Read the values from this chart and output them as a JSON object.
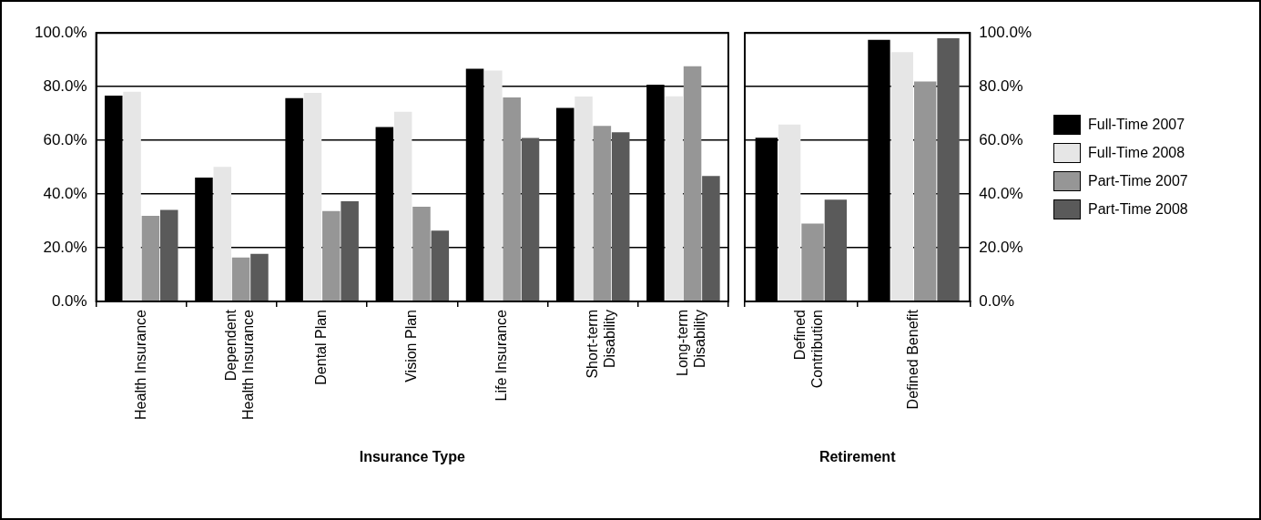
{
  "chart_data": [
    {
      "type": "bar",
      "xlabel": "Insurance Type",
      "categories": [
        "Health Insurance",
        "Dependent Health Insurance",
        "Dental Plan",
        "Vision Plan",
        "Life Insurance",
        "Short-term Disability",
        "Long-term Disability"
      ],
      "series": [
        {
          "color": "#000000",
          "values": [
            76.7,
            46.1,
            75.7,
            65.0,
            86.7,
            72.1,
            80.7
          ]
        },
        {
          "color": "#e6e6e6",
          "values": [
            78.1,
            50.1,
            77.7,
            70.6,
            86.0,
            76.3,
            76.4
          ]
        },
        {
          "color": "#969696",
          "values": [
            31.9,
            16.4,
            33.7,
            35.3,
            76.0,
            65.4,
            87.6
          ]
        },
        {
          "color": "#5a5a5a",
          "values": [
            34.1,
            17.7,
            37.3,
            26.4,
            60.9,
            63.0,
            46.7
          ]
        }
      ],
      "ylim": [
        0,
        100
      ],
      "yticks": [
        {
          "value": 0,
          "label": "0.0%"
        },
        {
          "value": 20,
          "label": "20.0%"
        },
        {
          "value": 40,
          "label": "40.0%"
        },
        {
          "value": 60,
          "label": "60.0%"
        },
        {
          "value": 80,
          "label": "80.0%"
        },
        {
          "value": 100,
          "label": "100.0%"
        }
      ],
      "grid": "y"
    },
    {
      "type": "bar",
      "xlabel": "Retirement",
      "categories": [
        "Defined Contribution",
        "Defined Benefit"
      ],
      "series": [
        {
          "name": "Full-Time 2007",
          "color": "#000000",
          "axis": "y2",
          "values": [
            61.0,
            97.4
          ]
        },
        {
          "name": "Full-Time 2008",
          "color": "#e6e6e6",
          "axis": "y2",
          "values": [
            65.9,
            92.9
          ]
        },
        {
          "name": "Part-Time 2007",
          "color": "#969696",
          "axis": "y2",
          "values": [
            29.0,
            81.9
          ]
        },
        {
          "name": "Part-Time 2008",
          "color": "#5a5a5a",
          "axis": "y2",
          "values": [
            37.9,
            98.0
          ]
        }
      ],
      "y2lim": [
        0,
        100
      ],
      "y2ticks": [
        {
          "value": 0,
          "label": "0.0%"
        },
        {
          "value": 20,
          "label": "20.0%"
        },
        {
          "value": 40,
          "label": "40.0%"
        },
        {
          "value": 60,
          "label": "60.0%"
        },
        {
          "value": 80,
          "label": "80.0%"
        },
        {
          "value": 100,
          "label": "100.0%"
        }
      ],
      "grid": "y",
      "legend": "right"
    }
  ]
}
